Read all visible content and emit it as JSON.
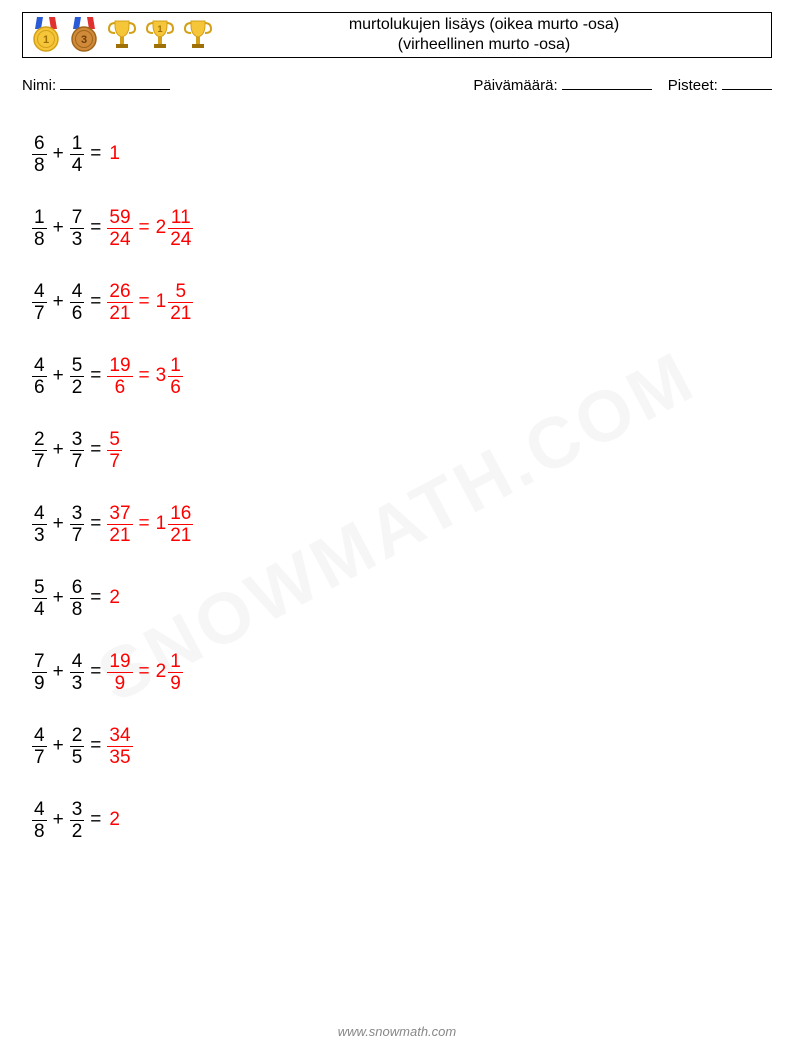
{
  "header": {
    "title_line1": "murtolukujen lisäys (oikea murto -osa)",
    "title_line2": "(virheellinen murto -osa)"
  },
  "labels": {
    "name": "Nimi:",
    "date": "Päivämäärä:",
    "score": "Pisteet:"
  },
  "blank_widths": {
    "name": 110,
    "date": 90,
    "score": 50
  },
  "colors": {
    "problem": "#000000",
    "answer": "#ff0000",
    "footer": "#888888",
    "gold": "#f5c53a",
    "gold_dark": "#d4a017",
    "bronze": "#d08a3a",
    "ribbon_blue": "#2a5bd7",
    "ribbon_red": "#e03030"
  },
  "problems": [
    {
      "lhs": [
        {
          "n": "6",
          "d": "8"
        },
        {
          "n": "1",
          "d": "4"
        }
      ],
      "rhs": [
        {
          "type": "int",
          "v": "1"
        }
      ]
    },
    {
      "lhs": [
        {
          "n": "1",
          "d": "8"
        },
        {
          "n": "7",
          "d": "3"
        }
      ],
      "rhs": [
        {
          "type": "frac",
          "n": "59",
          "d": "24"
        },
        {
          "type": "mixed",
          "w": "2",
          "n": "11",
          "d": "24"
        }
      ]
    },
    {
      "lhs": [
        {
          "n": "4",
          "d": "7"
        },
        {
          "n": "4",
          "d": "6"
        }
      ],
      "rhs": [
        {
          "type": "frac",
          "n": "26",
          "d": "21"
        },
        {
          "type": "mixed",
          "w": "1",
          "n": "5",
          "d": "21"
        }
      ]
    },
    {
      "lhs": [
        {
          "n": "4",
          "d": "6"
        },
        {
          "n": "5",
          "d": "2"
        }
      ],
      "rhs": [
        {
          "type": "frac",
          "n": "19",
          "d": "6"
        },
        {
          "type": "mixed",
          "w": "3",
          "n": "1",
          "d": "6"
        }
      ]
    },
    {
      "lhs": [
        {
          "n": "2",
          "d": "7"
        },
        {
          "n": "3",
          "d": "7"
        }
      ],
      "rhs": [
        {
          "type": "frac",
          "n": "5",
          "d": "7"
        }
      ]
    },
    {
      "lhs": [
        {
          "n": "4",
          "d": "3"
        },
        {
          "n": "3",
          "d": "7"
        }
      ],
      "rhs": [
        {
          "type": "frac",
          "n": "37",
          "d": "21"
        },
        {
          "type": "mixed",
          "w": "1",
          "n": "16",
          "d": "21"
        }
      ]
    },
    {
      "lhs": [
        {
          "n": "5",
          "d": "4"
        },
        {
          "n": "6",
          "d": "8"
        }
      ],
      "rhs": [
        {
          "type": "int",
          "v": "2"
        }
      ]
    },
    {
      "lhs": [
        {
          "n": "7",
          "d": "9"
        },
        {
          "n": "4",
          "d": "3"
        }
      ],
      "rhs": [
        {
          "type": "frac",
          "n": "19",
          "d": "9"
        },
        {
          "type": "mixed",
          "w": "2",
          "n": "1",
          "d": "9"
        }
      ]
    },
    {
      "lhs": [
        {
          "n": "4",
          "d": "7"
        },
        {
          "n": "2",
          "d": "5"
        }
      ],
      "rhs": [
        {
          "type": "frac",
          "n": "34",
          "d": "35"
        }
      ]
    },
    {
      "lhs": [
        {
          "n": "4",
          "d": "8"
        },
        {
          "n": "3",
          "d": "2"
        }
      ],
      "rhs": [
        {
          "type": "int",
          "v": "2"
        }
      ]
    }
  ],
  "watermark": "SNOWMATH.COM",
  "footer": "www.snowmath.com"
}
